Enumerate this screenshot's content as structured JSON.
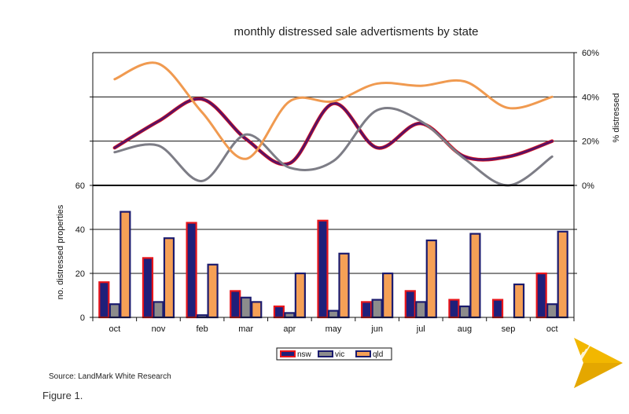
{
  "title": "monthly distressed sale advertisments by state",
  "source": "Source: LandMark White Research",
  "figure_caption": "Figure 1.",
  "colors": {
    "nsw_fill": "#1f1f7a",
    "nsw_border": "#e8151b",
    "vic_fill": "#8c8c8c",
    "vic_border": "#1b1b6e",
    "qld_fill": "#f5a056",
    "qld_border": "#1b1b6e",
    "line_nsw": "#5a1263",
    "line_vic": "#7d7d86",
    "line_qld": "#f09a50",
    "logo": "#f2b700"
  },
  "chart_data": [
    {
      "type": "line",
      "categories": [
        "oct",
        "nov",
        "feb",
        "mar",
        "apr",
        "may",
        "jun",
        "jul",
        "aug",
        "sep",
        "oct"
      ],
      "ylabel": "% distressed",
      "ylim": [
        0,
        60
      ],
      "yticks": [
        "0%",
        "20%",
        "40%",
        "60%"
      ],
      "grid": true,
      "series": [
        {
          "key": "nsw",
          "values": [
            17,
            29,
            39,
            21,
            10,
            37,
            17,
            28,
            13,
            13,
            20
          ]
        },
        {
          "key": "vic",
          "values": [
            15,
            18,
            2,
            23,
            8,
            11,
            34,
            29,
            12,
            0,
            13
          ]
        },
        {
          "key": "qld",
          "values": [
            48,
            55,
            33,
            12,
            38,
            38,
            46,
            45,
            47,
            35,
            40
          ]
        }
      ]
    },
    {
      "type": "bar",
      "categories": [
        "oct",
        "nov",
        "feb",
        "mar",
        "apr",
        "may",
        "jun",
        "jul",
        "aug",
        "sep",
        "oct"
      ],
      "ylabel": "no. distressed properties",
      "ylim": [
        0,
        60
      ],
      "yticks": [
        "0",
        "20",
        "40",
        "60"
      ],
      "grid": true,
      "series": [
        {
          "key": "nsw",
          "name": "nsw",
          "values": [
            16,
            27,
            43,
            12,
            5,
            44,
            7,
            12,
            8,
            8,
            20
          ]
        },
        {
          "key": "vic",
          "name": "vic",
          "values": [
            6,
            7,
            1,
            9,
            2,
            3,
            8,
            7,
            5,
            0,
            6
          ]
        },
        {
          "key": "qld",
          "name": "qld",
          "values": [
            48,
            36,
            24,
            7,
            20,
            29,
            20,
            35,
            38,
            15,
            39
          ]
        }
      ],
      "legend": {
        "position": "bottom",
        "entries": [
          "nsw",
          "vic",
          "qld"
        ]
      }
    }
  ]
}
